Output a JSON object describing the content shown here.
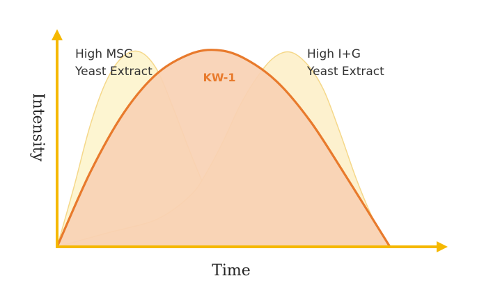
{
  "chart_data": {
    "type": "area",
    "xlabel": "Time",
    "ylabel": "Intensity",
    "x_range": [
      0,
      100
    ],
    "y_range": [
      0,
      100
    ],
    "grid": false,
    "legend": "none",
    "colors": {
      "axis": "#F5B800",
      "msg_fill": "#FDF4CF",
      "msg_stroke": "#F5D88A",
      "ig_fill": "#FDF0CB",
      "ig_stroke": "#F5D88A",
      "kw_fill": "#F9D1B4",
      "kw_stroke": "#E87A2C"
    },
    "series": [
      {
        "key": "msg",
        "label_lines": [
          "High MSG",
          "Yeast Extract"
        ],
        "x": [
          0,
          5,
          10,
          15,
          20,
          25,
          30,
          35,
          40,
          45,
          50,
          57
        ],
        "y": [
          0,
          30,
          62,
          85,
          97,
          99,
          90,
          70,
          48,
          28,
          14,
          0
        ]
      },
      {
        "key": "ig",
        "label_lines": [
          "High I+G",
          "Yeast Extract"
        ],
        "x": [
          0,
          15,
          30,
          40,
          45,
          50,
          55,
          60,
          65,
          70,
          75,
          80,
          85,
          90,
          95,
          100
        ],
        "y": [
          0,
          7,
          14,
          26,
          38,
          54,
          72,
          86,
          96,
          99,
          93,
          80,
          58,
          34,
          14,
          0
        ]
      },
      {
        "key": "kw",
        "label_lines": [
          "KW-1"
        ],
        "x": [
          0,
          10,
          20,
          30,
          40,
          48,
          56,
          66,
          76,
          86,
          100
        ],
        "y": [
          0,
          38,
          68,
          88,
          98,
          100,
          96,
          84,
          64,
          38,
          0
        ]
      }
    ]
  }
}
